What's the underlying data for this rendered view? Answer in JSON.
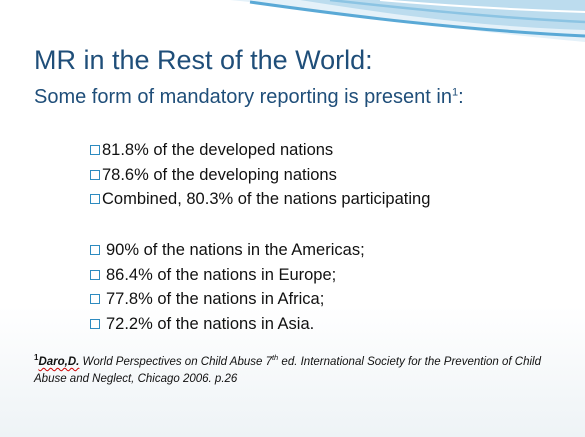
{
  "slide": {
    "title": "MR in the Rest of the World:",
    "subtitle": "Some form of mandatory reporting is present in",
    "subtitle_ref": "1",
    "bullets_group_1": [
      "81.8% of the developed nations",
      "78.6% of the developing nations",
      "Combined, 80.3% of the nations participating"
    ],
    "bullets_group_2": [
      "90% of the nations in the Americas;",
      "86.4% of the nations in Europe;",
      "77.8% of the nations in Africa;",
      "72.2% of the nations in Asia."
    ],
    "footnote": {
      "marker": "1",
      "author": "Daro,D.",
      "text_before_ordinal": " World Perspectives on Child Abuse 7",
      "ordinal_suffix": "th",
      "text_after_ordinal": " ed. International Society for the Prevention of Child Abuse and Neglect, Chicago 2006. p.26"
    }
  },
  "colors": {
    "title": "#1f4e79",
    "bullet_box": "#2e8bc0",
    "body_text": "#111111",
    "swoosh_light": "#cfe6f3",
    "swoosh_dark": "#5aa9d6"
  },
  "icons": {
    "bullet": "hollow-square-bullet-icon",
    "header_decoration": "blue-wave-swoosh"
  }
}
